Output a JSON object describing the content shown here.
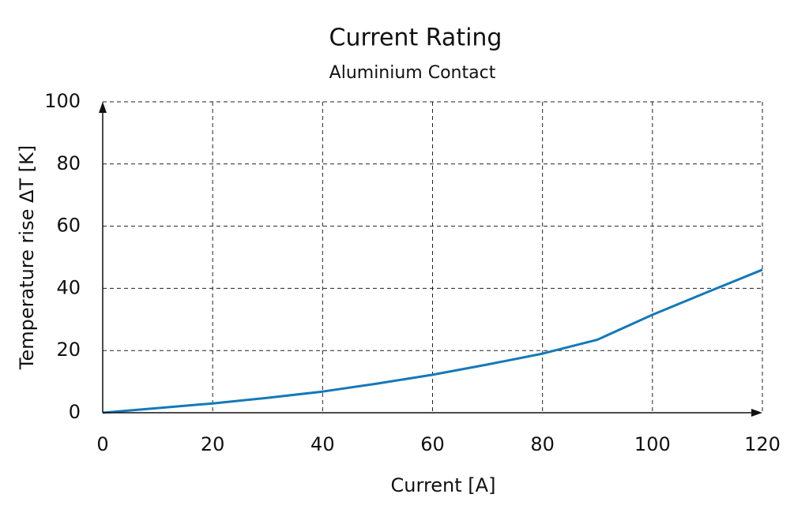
{
  "chart_data": {
    "type": "line",
    "title": "Current Rating",
    "subtitle": "Aluminium Contact",
    "x_label": "Current [A]",
    "y_label": "Temperature rise ΔT [K]",
    "x": [
      0,
      10,
      20,
      30,
      40,
      50,
      60,
      70,
      80,
      90,
      100,
      110,
      120
    ],
    "series": [
      {
        "name": "Aluminium Contact",
        "color": "#1479b8",
        "values": [
          0,
          1.5,
          3,
          4.8,
          6.8,
          9.4,
          12.2,
          15.5,
          19,
          23.5,
          31.5,
          38.8,
          46
        ]
      }
    ],
    "xlim": [
      0,
      120
    ],
    "xticks": [
      0,
      20,
      40,
      60,
      80,
      100,
      120
    ],
    "ylim": [
      0,
      100
    ],
    "yticks": [
      0,
      20,
      40,
      60,
      80,
      100
    ],
    "grid": true
  }
}
